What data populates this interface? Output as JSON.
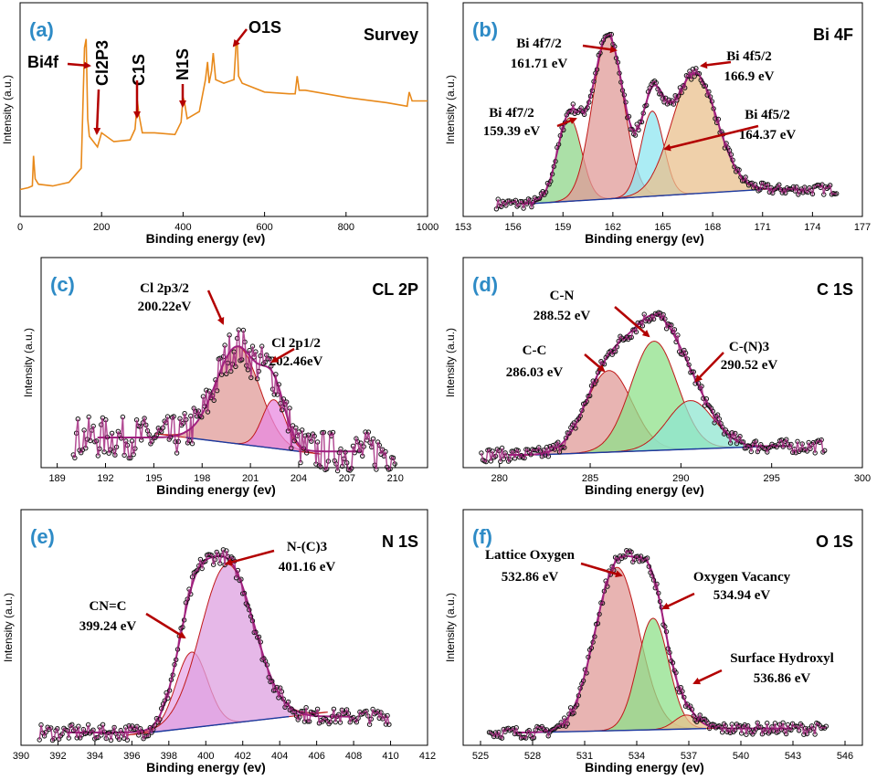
{
  "colors": {
    "panel_label": "#2e8bc6",
    "arrow": "#b30000",
    "survey": "#e8891a",
    "raw": "#000000",
    "fit_envelope": "#a02080"
  },
  "chart_data": [
    {
      "panel": "(a)",
      "title": "Survey",
      "type": "line",
      "xlabel": "Binding energy (ev)",
      "ylabel": "Intensity (a.u.)",
      "xlim": [
        0,
        1000
      ],
      "xticks": [
        0,
        200,
        400,
        600,
        800,
        1000
      ],
      "series": [
        {
          "x": [
            0,
            20,
            30,
            33,
            37,
            45,
            80,
            120,
            150,
            158,
            162,
            166,
            170,
            180,
            190,
            200,
            230,
            270,
            282,
            288,
            292,
            300,
            330,
            380,
            395,
            400,
            403,
            410,
            440,
            455,
            460,
            464,
            470,
            474,
            480,
            500,
            525,
            530,
            533,
            536,
            545,
            600,
            660,
            675,
            680,
            685,
            700,
            800,
            900,
            950,
            955,
            962,
            1000
          ],
          "y": [
            0.08,
            0.09,
            0.1,
            0.27,
            0.14,
            0.11,
            0.1,
            0.12,
            0.2,
            0.88,
            0.93,
            0.48,
            0.38,
            0.35,
            0.32,
            0.4,
            0.35,
            0.36,
            0.42,
            0.58,
            0.5,
            0.4,
            0.4,
            0.39,
            0.46,
            0.6,
            0.58,
            0.48,
            0.52,
            0.7,
            0.8,
            0.68,
            0.75,
            0.85,
            0.7,
            0.68,
            0.7,
            0.9,
            0.92,
            0.72,
            0.68,
            0.63,
            0.62,
            0.62,
            0.72,
            0.64,
            0.64,
            0.6,
            0.57,
            0.55,
            0.63,
            0.58,
            0.58
          ]
        }
      ],
      "annotations": [
        {
          "text": "Bi4f",
          "x": 160
        },
        {
          "text": "Cl2P3",
          "x": 200
        },
        {
          "text": "C1S",
          "x": 288
        },
        {
          "text": "N1S",
          "x": 400
        },
        {
          "text": "O1S",
          "x": 532
        }
      ]
    },
    {
      "panel": "(b)",
      "title": "Bi 4F",
      "type": "area",
      "xlabel": "Binding energy (ev)",
      "ylabel": "Intensity (a.u.)",
      "xlim": [
        153,
        177
      ],
      "xticks": [
        153,
        156,
        159,
        162,
        165,
        168,
        171,
        174,
        177
      ],
      "background": [
        [
          157,
          0.0
        ],
        [
          171,
          0.08
        ]
      ],
      "peaks": [
        {
          "label": "Bi 4f7/2",
          "value": "159.39 eV",
          "center": 159.39,
          "height": 0.47,
          "fwhm": 1.7,
          "color": "#8fd68a"
        },
        {
          "label": "Bi 4f7/2",
          "value": "161.71 eV",
          "center": 161.71,
          "height": 0.92,
          "fwhm": 2.2,
          "color": "#e09b98"
        },
        {
          "label": "Bi 4f5/2",
          "value": "164.37 eV",
          "center": 164.37,
          "height": 0.48,
          "fwhm": 1.6,
          "color": "#8fe6f0"
        },
        {
          "label": "Bi 4f5/2",
          "value": "166.9 eV",
          "center": 166.9,
          "height": 0.68,
          "fwhm": 3.2,
          "color": "#e9c08e"
        }
      ],
      "raw_range": [
        155,
        175.5
      ],
      "raw_noise": 0.03
    },
    {
      "panel": "(c)",
      "title": "CL 2P",
      "type": "area",
      "xlabel": "Binding energy (ev)",
      "ylabel": "Intensity (a.u.)",
      "xlim": [
        188,
        212
      ],
      "xticks": [
        189,
        192,
        195,
        198,
        201,
        204,
        207,
        210
      ],
      "background": [
        [
          197,
          0.1
        ],
        [
          204,
          0.02
        ]
      ],
      "peaks": [
        {
          "label": "Cl 2p3/2",
          "value": "200.22eV",
          "center": 200.22,
          "height": 0.56,
          "fwhm": 3.2,
          "color": "#e09b98"
        },
        {
          "label": "Cl 2p1/2",
          "value": "202.46eV",
          "center": 202.46,
          "height": 0.28,
          "fwhm": 1.7,
          "color": "#e88ae0"
        }
      ],
      "raw_range": [
        190,
        210
      ],
      "raw_noise": 0.12
    },
    {
      "panel": "(d)",
      "title": "C 1S",
      "type": "area",
      "xlabel": "Binding energy (ev)",
      "ylabel": "Intensity (a.u.)",
      "xlim": [
        278,
        300
      ],
      "xticks": [
        280,
        285,
        290,
        295,
        300
      ],
      "background": [
        [
          282,
          0.0
        ],
        [
          295,
          0.05
        ]
      ],
      "peaks": [
        {
          "label": "C-C",
          "value": "286.03 eV",
          "center": 286.03,
          "height": 0.47,
          "fwhm": 3.0,
          "color": "#e09b98"
        },
        {
          "label": "C-N",
          "value": "288.52 eV",
          "center": 288.52,
          "height": 0.63,
          "fwhm": 3.0,
          "color": "#8fe08a"
        },
        {
          "label": "C-(N)3",
          "value": "290.52 eV",
          "center": 290.52,
          "height": 0.28,
          "fwhm": 3.0,
          "color": "#8fe6d0"
        }
      ],
      "raw_range": [
        279,
        298
      ],
      "raw_noise": 0.04
    },
    {
      "panel": "(e)",
      "title": "N 1S",
      "type": "area",
      "xlabel": "Binding energy (ev)",
      "ylabel": "Intensity (a.u.)",
      "xlim": [
        390,
        412
      ],
      "xticks": [
        390,
        392,
        394,
        396,
        398,
        400,
        402,
        404,
        406,
        408,
        410,
        412
      ],
      "background": [
        [
          397,
          0.0
        ],
        [
          404.5,
          0.08
        ]
      ],
      "peaks": [
        {
          "label": "CN=C",
          "value": "399.24 eV",
          "center": 399.24,
          "height": 0.38,
          "fwhm": 2.0,
          "color": "#e7a8e8"
        },
        {
          "label": "N-(C)3",
          "value": "401.16 eV",
          "center": 401.16,
          "height": 0.8,
          "fwhm": 3.4,
          "color": "#dda0e0"
        }
      ],
      "raw_range": [
        391,
        410
      ],
      "raw_noise": 0.04
    },
    {
      "panel": "(f)",
      "title": "O 1S",
      "type": "area",
      "xlabel": "Binding energy (ev)",
      "ylabel": "Intensity (a.u.)",
      "xlim": [
        524,
        547
      ],
      "xticks": [
        525,
        528,
        531,
        534,
        537,
        540,
        543,
        546
      ],
      "background": [
        [
          528,
          0.0
        ],
        [
          538,
          0.02
        ]
      ],
      "peaks": [
        {
          "label": "Lattice Oxygen",
          "value": "532.86 eV",
          "center": 532.86,
          "height": 0.82,
          "fwhm": 3.0,
          "color": "#e09b98"
        },
        {
          "label": "Oxygen Vacancy",
          "value": "534.94 eV",
          "center": 534.94,
          "height": 0.56,
          "fwhm": 2.1,
          "color": "#8fe08a"
        },
        {
          "label": "Surface Hydroxyl",
          "value": "536.86 eV",
          "center": 536.86,
          "height": 0.07,
          "fwhm": 1.6,
          "color": "#e9c08e"
        }
      ],
      "raw_range": [
        525.5,
        545
      ],
      "raw_noise": 0.03
    }
  ]
}
